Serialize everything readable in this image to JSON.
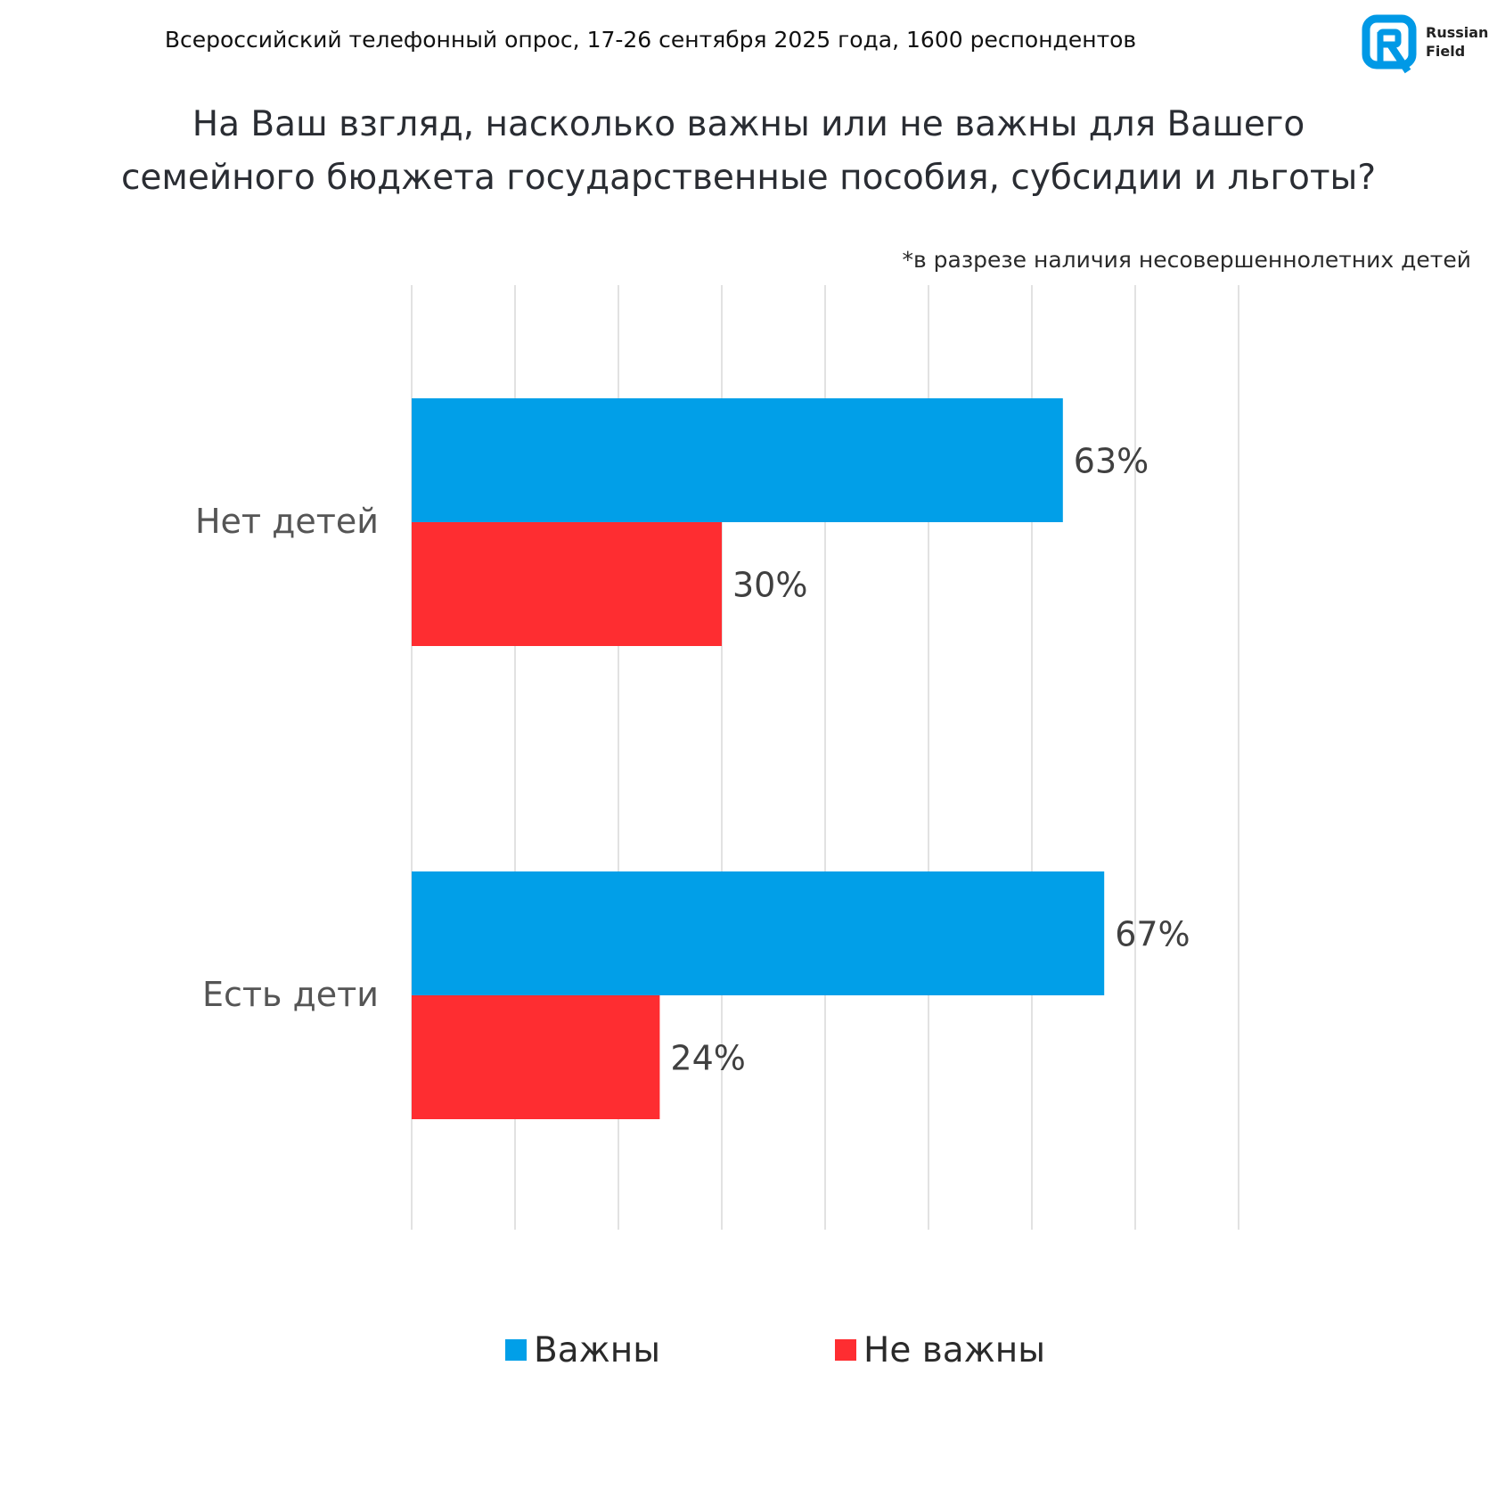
{
  "header": {
    "survey_line": "Всероссийский телефонный опрос, 17-26 сентября 2025 года, 1600 респондентов"
  },
  "logo": {
    "line1": "Russian",
    "line2": "Field",
    "color": "#0099e6"
  },
  "question": {
    "line1": "На Ваш взгляд, насколько важны или не важны для Вашего",
    "line2": "семейного бюджета государственные пособия, субсидии и льготы?"
  },
  "note": "*в разрезе наличия несовершеннолетних детей",
  "colors": {
    "important": "#019fe8",
    "not_important": "#fe2d31",
    "grid": "#d9d9d9",
    "text": "#404040"
  },
  "chart_data": {
    "type": "bar",
    "orientation": "horizontal",
    "categories": [
      "Нет детей",
      "Есть дети"
    ],
    "series": [
      {
        "name": "Важны",
        "values": [
          63,
          67
        ],
        "labels": [
          "63%",
          "67%"
        ],
        "color": "#019fe8"
      },
      {
        "name": "Не важны",
        "values": [
          30,
          24
        ],
        "labels": [
          "30%",
          "24%"
        ],
        "color": "#fe2d31"
      }
    ],
    "xlim": [
      0,
      80
    ],
    "unit": "%",
    "grid": true,
    "legend": "bottom"
  }
}
